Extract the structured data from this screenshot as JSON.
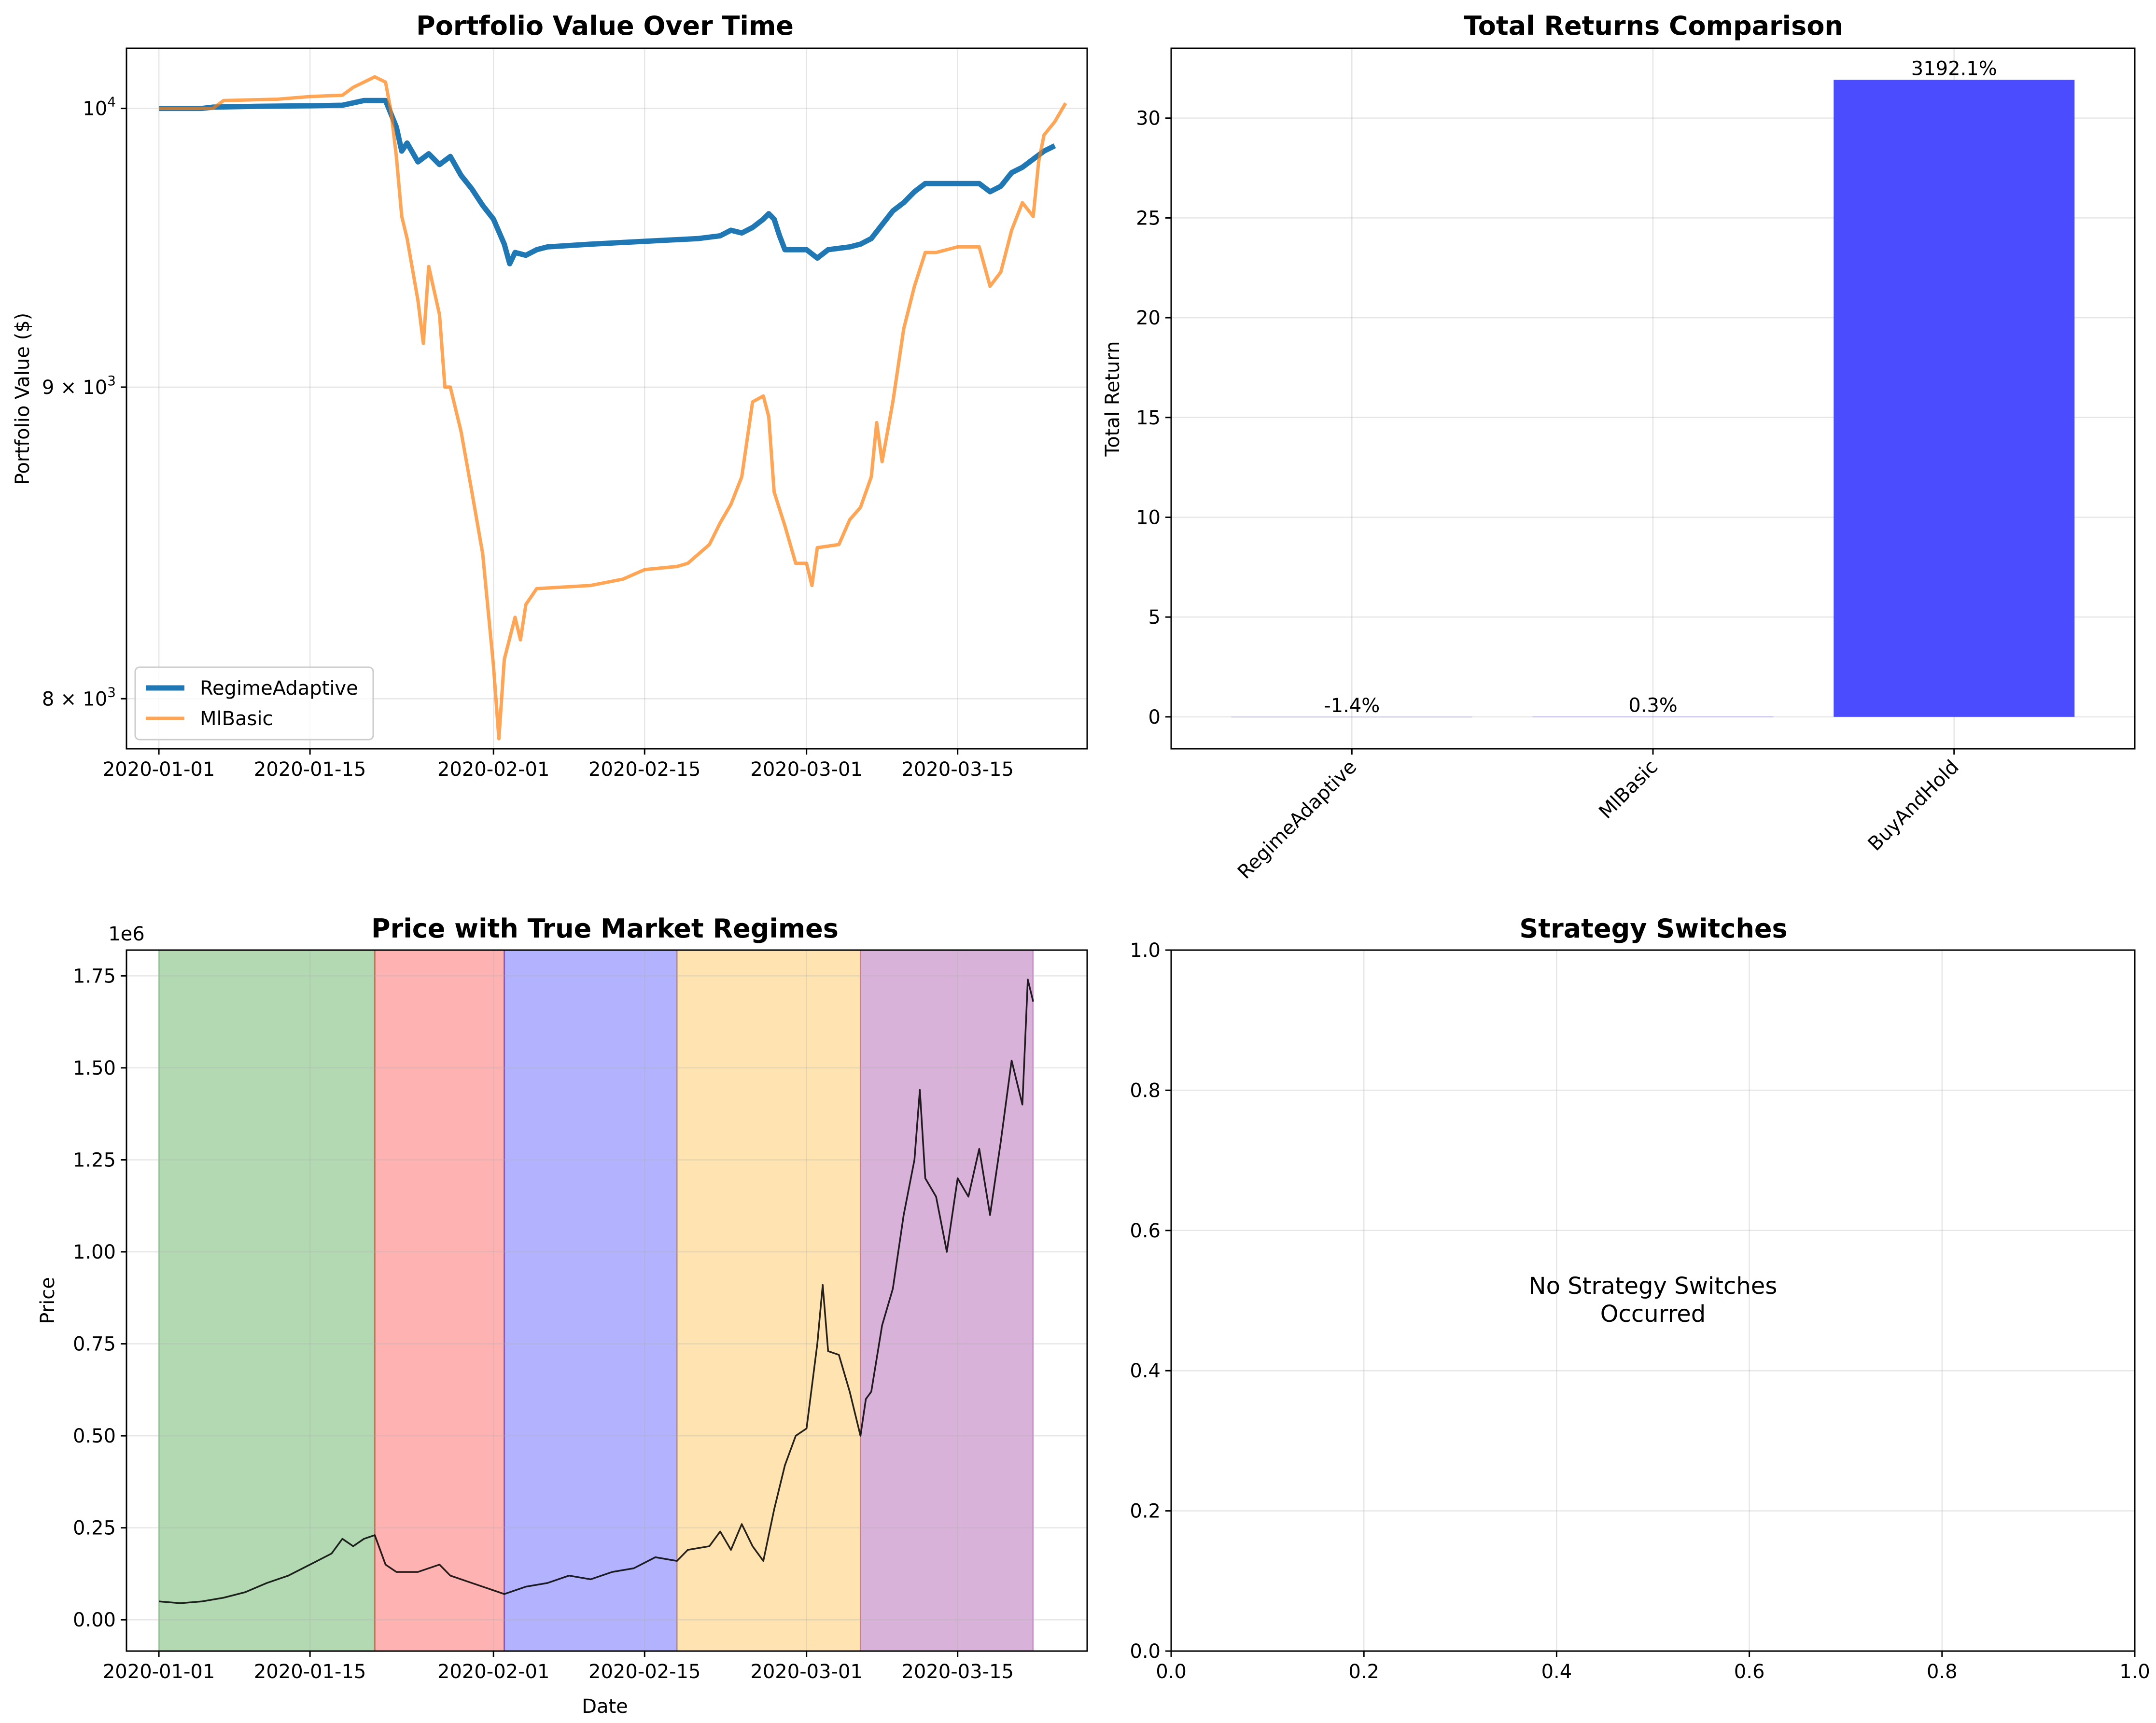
{
  "chart_data": [
    {
      "type": "line",
      "title": "Portfolio Value Over Time",
      "xlabel": "",
      "ylabel": "Portfolio Value ($)",
      "yscale": "log",
      "ylim": [
        7850,
        10230
      ],
      "xlim": [
        "2019-12-29",
        "2020-03-27"
      ],
      "x_ticks": [
        "2020-01-01",
        "2020-01-15",
        "2020-02-01",
        "2020-02-15",
        "2020-03-01",
        "2020-03-15"
      ],
      "y_ticks": [
        {
          "value": 10000,
          "base": "10",
          "exp": "4",
          "coef": ""
        },
        {
          "value": 9000,
          "base": "10",
          "exp": "3",
          "coef": "9 × "
        },
        {
          "value": 8000,
          "base": "10",
          "exp": "3",
          "coef": "8 × "
        }
      ],
      "legend_position": "lower-left",
      "grid": true,
      "series": [
        {
          "name": "RegimeAdaptive",
          "color": "#1f77b4",
          "points": [
            [
              "2020-01-01",
              10000
            ],
            [
              "2020-01-05",
              10000
            ],
            [
              "2020-01-06",
              10005
            ],
            [
              "2020-01-10",
              10008
            ],
            [
              "2020-01-15",
              10010
            ],
            [
              "2020-01-18",
              10012
            ],
            [
              "2020-01-20",
              10030
            ],
            [
              "2020-01-22",
              10030
            ],
            [
              "2020-01-23",
              9930
            ],
            [
              "2020-01-23T12:00",
              9840
            ],
            [
              "2020-01-24",
              9870
            ],
            [
              "2020-01-25",
              9800
            ],
            [
              "2020-01-26",
              9830
            ],
            [
              "2020-01-27",
              9790
            ],
            [
              "2020-01-28",
              9820
            ],
            [
              "2020-01-29",
              9750
            ],
            [
              "2020-01-30",
              9700
            ],
            [
              "2020-01-31",
              9640
            ],
            [
              "2020-02-01",
              9590
            ],
            [
              "2020-02-02",
              9500
            ],
            [
              "2020-02-02T12:00",
              9430
            ],
            [
              "2020-02-03",
              9470
            ],
            [
              "2020-02-04",
              9460
            ],
            [
              "2020-02-05",
              9480
            ],
            [
              "2020-02-06",
              9490
            ],
            [
              "2020-02-10",
              9500
            ],
            [
              "2020-02-15",
              9510
            ],
            [
              "2020-02-20",
              9520
            ],
            [
              "2020-02-22",
              9530
            ],
            [
              "2020-02-23",
              9550
            ],
            [
              "2020-02-24",
              9540
            ],
            [
              "2020-02-25",
              9560
            ],
            [
              "2020-02-26",
              9590
            ],
            [
              "2020-02-26T12:00",
              9610
            ],
            [
              "2020-02-27",
              9590
            ],
            [
              "2020-02-27T12:00",
              9530
            ],
            [
              "2020-02-28",
              9480
            ],
            [
              "2020-03-01",
              9480
            ],
            [
              "2020-03-02",
              9450
            ],
            [
              "2020-03-03",
              9480
            ],
            [
              "2020-03-05",
              9490
            ],
            [
              "2020-03-06",
              9500
            ],
            [
              "2020-03-07",
              9520
            ],
            [
              "2020-03-08",
              9570
            ],
            [
              "2020-03-09",
              9620
            ],
            [
              "2020-03-10",
              9650
            ],
            [
              "2020-03-11",
              9690
            ],
            [
              "2020-03-12",
              9720
            ],
            [
              "2020-03-15",
              9720
            ],
            [
              "2020-03-17",
              9720
            ],
            [
              "2020-03-18",
              9690
            ],
            [
              "2020-03-19",
              9710
            ],
            [
              "2020-03-20",
              9760
            ],
            [
              "2020-03-21",
              9780
            ],
            [
              "2020-03-22",
              9810
            ],
            [
              "2020-03-23",
              9840
            ],
            [
              "2020-03-24",
              9860
            ]
          ]
        },
        {
          "name": "MlBasic",
          "color": "#ff7f0e",
          "points": [
            [
              "2020-01-01",
              10000
            ],
            [
              "2020-01-06",
              10000
            ],
            [
              "2020-01-07",
              10030
            ],
            [
              "2020-01-12",
              10035
            ],
            [
              "2020-01-15",
              10045
            ],
            [
              "2020-01-18",
              10050
            ],
            [
              "2020-01-19",
              10080
            ],
            [
              "2020-01-20",
              10100
            ],
            [
              "2020-01-21",
              10120
            ],
            [
              "2020-01-22",
              10100
            ],
            [
              "2020-01-22T12:00",
              9990
            ],
            [
              "2020-01-23",
              9820
            ],
            [
              "2020-01-23T12:00",
              9600
            ],
            [
              "2020-01-24",
              9520
            ],
            [
              "2020-01-25",
              9300
            ],
            [
              "2020-01-25T12:00",
              9150
            ],
            [
              "2020-01-26",
              9420
            ],
            [
              "2020-01-27",
              9250
            ],
            [
              "2020-01-27T12:00",
              9000
            ],
            [
              "2020-01-28",
              9000
            ],
            [
              "2020-01-29",
              8850
            ],
            [
              "2020-01-30",
              8650
            ],
            [
              "2020-01-31",
              8450
            ],
            [
              "2020-02-01",
              8100
            ],
            [
              "2020-02-01T12:00",
              7880
            ],
            [
              "2020-02-02",
              8120
            ],
            [
              "2020-02-03",
              8250
            ],
            [
              "2020-02-03T12:00",
              8180
            ],
            [
              "2020-02-04",
              8290
            ],
            [
              "2020-02-05",
              8340
            ],
            [
              "2020-02-10",
              8350
            ],
            [
              "2020-02-13",
              8370
            ],
            [
              "2020-02-15",
              8400
            ],
            [
              "2020-02-18",
              8410
            ],
            [
              "2020-02-19",
              8420
            ],
            [
              "2020-02-20",
              8450
            ],
            [
              "2020-02-21",
              8480
            ],
            [
              "2020-02-22",
              8550
            ],
            [
              "2020-02-23",
              8610
            ],
            [
              "2020-02-24",
              8700
            ],
            [
              "2020-02-25",
              8950
            ],
            [
              "2020-02-26",
              8970
            ],
            [
              "2020-02-26T12:00",
              8900
            ],
            [
              "2020-02-27",
              8650
            ],
            [
              "2020-02-28",
              8540
            ],
            [
              "2020-02-29",
              8420
            ],
            [
              "2020-03-01",
              8420
            ],
            [
              "2020-03-01T12:00",
              8350
            ],
            [
              "2020-03-02",
              8470
            ],
            [
              "2020-03-04",
              8480
            ],
            [
              "2020-03-05",
              8560
            ],
            [
              "2020-03-06",
              8600
            ],
            [
              "2020-03-07",
              8700
            ],
            [
              "2020-03-07T12:00",
              8880
            ],
            [
              "2020-03-08",
              8750
            ],
            [
              "2020-03-09",
              8950
            ],
            [
              "2020-03-10",
              9200
            ],
            [
              "2020-03-11",
              9350
            ],
            [
              "2020-03-12",
              9470
            ],
            [
              "2020-03-13",
              9470
            ],
            [
              "2020-03-14",
              9480
            ],
            [
              "2020-03-15",
              9490
            ],
            [
              "2020-03-17",
              9490
            ],
            [
              "2020-03-18",
              9350
            ],
            [
              "2020-03-19",
              9400
            ],
            [
              "2020-03-20",
              9550
            ],
            [
              "2020-03-21",
              9650
            ],
            [
              "2020-03-22",
              9600
            ],
            [
              "2020-03-22T12:00",
              9800
            ],
            [
              "2020-03-23",
              9900
            ],
            [
              "2020-03-24",
              9950
            ],
            [
              "2020-03-25",
              10020
            ]
          ]
        }
      ]
    },
    {
      "type": "bar",
      "title": "Total Returns Comparison",
      "xlabel": "",
      "ylabel": "Total Return",
      "categories": [
        "RegimeAdaptive",
        "MlBasic",
        "BuyAndHold"
      ],
      "values": [
        -0.014,
        0.003,
        31.921
      ],
      "data_labels": [
        "-1.4%",
        "0.3%",
        "3192.1%"
      ],
      "colors": [
        "#4c4cff",
        "#4c4cff",
        "#4c4cff"
      ],
      "ylim": [
        -1.6,
        33.5
      ],
      "y_ticks": [
        "0",
        "5",
        "10",
        "15",
        "20",
        "25",
        "30"
      ],
      "grid": true
    },
    {
      "type": "line",
      "title": "Price with True Market Regimes",
      "xlabel": "Date",
      "ylabel": "Price",
      "y_offset_label": "1e6",
      "ylim": [
        -0.085,
        1.82
      ],
      "xlim": [
        "2019-12-29",
        "2020-03-27"
      ],
      "x_ticks": [
        "2020-01-01",
        "2020-01-15",
        "2020-02-01",
        "2020-02-15",
        "2020-03-01",
        "2020-03-15"
      ],
      "y_ticks": [
        "0.00",
        "0.25",
        "0.50",
        "0.75",
        "1.00",
        "1.25",
        "1.50",
        "1.75"
      ],
      "grid": true,
      "regions": [
        {
          "start": "2020-01-01",
          "end": "2020-01-21",
          "color": "#008000"
        },
        {
          "start": "2020-01-21",
          "end": "2020-02-02",
          "color": "#ff0000"
        },
        {
          "start": "2020-02-02",
          "end": "2020-02-18",
          "color": "#0000ff"
        },
        {
          "start": "2020-02-18",
          "end": "2020-03-06",
          "color": "#ffa500"
        },
        {
          "start": "2020-03-06",
          "end": "2020-03-22",
          "color": "#800080"
        }
      ],
      "series": [
        {
          "name": "",
          "color": "#000000",
          "points": [
            [
              "2020-01-01",
              0.05
            ],
            [
              "2020-01-03",
              0.045
            ],
            [
              "2020-01-05",
              0.05
            ],
            [
              "2020-01-07",
              0.06
            ],
            [
              "2020-01-09",
              0.075
            ],
            [
              "2020-01-11",
              0.1
            ],
            [
              "2020-01-13",
              0.12
            ],
            [
              "2020-01-15",
              0.15
            ],
            [
              "2020-01-17",
              0.18
            ],
            [
              "2020-01-18",
              0.22
            ],
            [
              "2020-01-19",
              0.2
            ],
            [
              "2020-01-20",
              0.22
            ],
            [
              "2020-01-21",
              0.23
            ],
            [
              "2020-01-22",
              0.15
            ],
            [
              "2020-01-23",
              0.13
            ],
            [
              "2020-01-25",
              0.13
            ],
            [
              "2020-01-27",
              0.15
            ],
            [
              "2020-01-28",
              0.12
            ],
            [
              "2020-01-30",
              0.1
            ],
            [
              "2020-02-01",
              0.08
            ],
            [
              "2020-02-02",
              0.07
            ],
            [
              "2020-02-04",
              0.09
            ],
            [
              "2020-02-06",
              0.1
            ],
            [
              "2020-02-08",
              0.12
            ],
            [
              "2020-02-10",
              0.11
            ],
            [
              "2020-02-12",
              0.13
            ],
            [
              "2020-02-14",
              0.14
            ],
            [
              "2020-02-16",
              0.17
            ],
            [
              "2020-02-18",
              0.16
            ],
            [
              "2020-02-19",
              0.19
            ],
            [
              "2020-02-21",
              0.2
            ],
            [
              "2020-02-22",
              0.24
            ],
            [
              "2020-02-23",
              0.19
            ],
            [
              "2020-02-24",
              0.26
            ],
            [
              "2020-02-25",
              0.2
            ],
            [
              "2020-02-26",
              0.16
            ],
            [
              "2020-02-27",
              0.3
            ],
            [
              "2020-02-28",
              0.42
            ],
            [
              "2020-02-29",
              0.5
            ],
            [
              "2020-03-01",
              0.52
            ],
            [
              "2020-03-02",
              0.75
            ],
            [
              "2020-03-02T12:00",
              0.91
            ],
            [
              "2020-03-03",
              0.73
            ],
            [
              "2020-03-04",
              0.72
            ],
            [
              "2020-03-05",
              0.62
            ],
            [
              "2020-03-06",
              0.5
            ],
            [
              "2020-03-06T12:00",
              0.6
            ],
            [
              "2020-03-07",
              0.62
            ],
            [
              "2020-03-08",
              0.8
            ],
            [
              "2020-03-09",
              0.9
            ],
            [
              "2020-03-10",
              1.1
            ],
            [
              "2020-03-11",
              1.25
            ],
            [
              "2020-03-11T12:00",
              1.44
            ],
            [
              "2020-03-12",
              1.2
            ],
            [
              "2020-03-13",
              1.15
            ],
            [
              "2020-03-14",
              1.0
            ],
            [
              "2020-03-15",
              1.2
            ],
            [
              "2020-03-16",
              1.15
            ],
            [
              "2020-03-17",
              1.28
            ],
            [
              "2020-03-18",
              1.1
            ],
            [
              "2020-03-19",
              1.3
            ],
            [
              "2020-03-20",
              1.52
            ],
            [
              "2020-03-21",
              1.4
            ],
            [
              "2020-03-21T12:00",
              1.74
            ],
            [
              "2020-03-22",
              1.68
            ]
          ]
        }
      ]
    },
    {
      "type": "line",
      "title": "Strategy Switches",
      "xlabel": "",
      "ylabel": "",
      "xlim": [
        0,
        1
      ],
      "ylim": [
        0,
        1
      ],
      "x_ticks": [
        "0.0",
        "0.2",
        "0.4",
        "0.6",
        "0.8",
        "1.0"
      ],
      "y_ticks": [
        "0.0",
        "0.2",
        "0.4",
        "0.6",
        "0.8",
        "1.0"
      ],
      "annotation_lines": [
        "No Strategy Switches",
        "Occurred"
      ],
      "grid": true,
      "series": []
    }
  ]
}
